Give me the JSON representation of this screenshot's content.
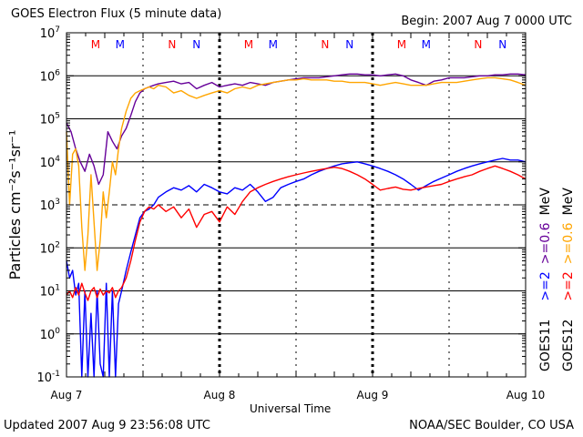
{
  "header": {
    "title": "GOES Electron Flux (5 minute data)",
    "begin": "Begin: 2007 Aug 7 0000 UTC"
  },
  "footer": {
    "updated": "Updated 2007 Aug  9 23:56:08 UTC",
    "source": "NOAA/SEC Boulder, CO USA"
  },
  "colors": {
    "goes11_ge2": "#0000ff",
    "goes11_ge06": "#660099",
    "goes12_ge2": "#ff0000",
    "goes12_ge06": "#ffa500",
    "marker_M": "#ff0000",
    "marker_N": "#0000ff"
  },
  "chart_data": {
    "type": "line",
    "title": "GOES Electron Flux (5 minute data)",
    "xlabel": "Universal Time",
    "ylabel": "Particles cm⁻²s⁻¹sr⁻¹",
    "y_scale": "log",
    "ylim": [
      0.1,
      10000000
    ],
    "y_ticks": [
      {
        "value": 0.1,
        "base": "10",
        "exp": "-1"
      },
      {
        "value": 1,
        "base": "10",
        "exp": "0"
      },
      {
        "value": 10,
        "base": "10",
        "exp": "1"
      },
      {
        "value": 100,
        "base": "10",
        "exp": "2"
      },
      {
        "value": 1000,
        "base": "10",
        "exp": "3"
      },
      {
        "value": 10000,
        "base": "10",
        "exp": "4"
      },
      {
        "value": 100000,
        "base": "10",
        "exp": "5"
      },
      {
        "value": 1000000,
        "base": "10",
        "exp": "6"
      },
      {
        "value": 10000000,
        "base": "10",
        "exp": "7"
      }
    ],
    "x_ticks": [
      {
        "day": 0,
        "label": "Aug 7"
      },
      {
        "day": 1,
        "label": "Aug 8"
      },
      {
        "day": 2,
        "label": "Aug 9"
      },
      {
        "day": 3,
        "label": "Aug 10"
      }
    ],
    "xlim_days": [
      0,
      3
    ],
    "grid": {
      "solid_decades": [
        1,
        10,
        100,
        10000,
        100000,
        1000000
      ],
      "dashed_decades": [
        1000
      ],
      "dashed_days": [
        0.5,
        1,
        1.5,
        2,
        2.5
      ]
    },
    "legend": {
      "position": "right",
      "groups": [
        {
          "satellite": "GOES11",
          "entries": [
            {
              "label": ">=2",
              "color": "#0000ff"
            },
            {
              "label": ">=0.6",
              "color": "#660099"
            },
            {
              "label": "MeV",
              "color": "#000000"
            }
          ]
        },
        {
          "satellite": "GOES12",
          "entries": [
            {
              "label": ">=2",
              "color": "#ff0000"
            },
            {
              "label": ">=0.6",
              "color": "#ffa500"
            },
            {
              "label": "MeV",
              "color": "#000000"
            }
          ]
        }
      ]
    },
    "markers": [
      {
        "day": 0.19,
        "label": "M",
        "color": "#ff0000"
      },
      {
        "day": 0.35,
        "label": "M",
        "color": "#0000ff"
      },
      {
        "day": 0.69,
        "label": "N",
        "color": "#ff0000"
      },
      {
        "day": 0.85,
        "label": "N",
        "color": "#0000ff"
      },
      {
        "day": 1.19,
        "label": "M",
        "color": "#ff0000"
      },
      {
        "day": 1.35,
        "label": "M",
        "color": "#0000ff"
      },
      {
        "day": 1.69,
        "label": "N",
        "color": "#ff0000"
      },
      {
        "day": 1.85,
        "label": "N",
        "color": "#0000ff"
      },
      {
        "day": 2.19,
        "label": "M",
        "color": "#ff0000"
      },
      {
        "day": 2.35,
        "label": "M",
        "color": "#0000ff"
      },
      {
        "day": 2.69,
        "label": "N",
        "color": "#ff0000"
      },
      {
        "day": 2.85,
        "label": "N",
        "color": "#0000ff"
      }
    ],
    "series": [
      {
        "name": "GOES11 >=0.6 MeV",
        "color": "#660099",
        "x": [
          0.0,
          0.03,
          0.06,
          0.09,
          0.12,
          0.15,
          0.18,
          0.21,
          0.24,
          0.27,
          0.3,
          0.33,
          0.36,
          0.39,
          0.42,
          0.45,
          0.48,
          0.51,
          0.54,
          0.57,
          0.6,
          0.65,
          0.7,
          0.75,
          0.8,
          0.85,
          0.9,
          0.95,
          1.0,
          1.05,
          1.1,
          1.15,
          1.2,
          1.25,
          1.3,
          1.35,
          1.4,
          1.45,
          1.5,
          1.55,
          1.6,
          1.65,
          1.7,
          1.75,
          1.8,
          1.85,
          1.9,
          1.95,
          2.0,
          2.05,
          2.1,
          2.15,
          2.2,
          2.25,
          2.3,
          2.35,
          2.4,
          2.45,
          2.5,
          2.55,
          2.6,
          2.65,
          2.7,
          2.75,
          2.8,
          2.85,
          2.9,
          2.95,
          3.0
        ],
        "y": [
          80000,
          50000,
          20000,
          10000,
          6000,
          15000,
          8000,
          3000,
          5000,
          50000,
          30000,
          20000,
          40000,
          60000,
          120000,
          250000,
          400000,
          500000,
          550000,
          600000,
          650000,
          700000,
          750000,
          650000,
          700000,
          500000,
          600000,
          700000,
          550000,
          600000,
          650000,
          600000,
          700000,
          650000,
          600000,
          700000,
          750000,
          800000,
          850000,
          900000,
          900000,
          900000,
          950000,
          1000000,
          1050000,
          1100000,
          1100000,
          1050000,
          1050000,
          1000000,
          1050000,
          1100000,
          1000000,
          800000,
          700000,
          600000,
          750000,
          800000,
          900000,
          900000,
          900000,
          950000,
          1000000,
          1000000,
          1050000,
          1050000,
          1100000,
          1100000,
          1050000
        ]
      },
      {
        "name": "GOES12 >=0.6 MeV",
        "color": "#ffa500",
        "x": [
          0.0,
          0.02,
          0.04,
          0.06,
          0.08,
          0.1,
          0.12,
          0.14,
          0.16,
          0.18,
          0.2,
          0.22,
          0.24,
          0.26,
          0.28,
          0.3,
          0.32,
          0.34,
          0.36,
          0.39,
          0.42,
          0.45,
          0.48,
          0.51,
          0.54,
          0.57,
          0.6,
          0.65,
          0.7,
          0.75,
          0.8,
          0.85,
          0.9,
          0.95,
          1.0,
          1.05,
          1.1,
          1.15,
          1.2,
          1.25,
          1.3,
          1.35,
          1.4,
          1.45,
          1.5,
          1.55,
          1.6,
          1.65,
          1.7,
          1.75,
          1.8,
          1.85,
          1.9,
          1.95,
          2.0,
          2.05,
          2.1,
          2.15,
          2.2,
          2.25,
          2.3,
          2.35,
          2.4,
          2.45,
          2.5,
          2.55,
          2.6,
          2.65,
          2.7,
          2.75,
          2.8,
          2.85,
          2.9,
          2.95,
          3.0
        ],
        "y": [
          50000,
          1000,
          15000,
          20000,
          8000,
          300,
          30,
          200,
          5000,
          400,
          30,
          150,
          2000,
          500,
          2000,
          10000,
          5000,
          20000,
          60000,
          150000,
          300000,
          400000,
          450000,
          500000,
          550000,
          500000,
          600000,
          550000,
          400000,
          450000,
          350000,
          300000,
          350000,
          400000,
          450000,
          400000,
          500000,
          550000,
          500000,
          600000,
          650000,
          700000,
          750000,
          800000,
          800000,
          850000,
          800000,
          800000,
          800000,
          750000,
          750000,
          700000,
          700000,
          700000,
          650000,
          600000,
          650000,
          700000,
          650000,
          600000,
          600000,
          600000,
          650000,
          700000,
          700000,
          700000,
          750000,
          800000,
          850000,
          900000,
          900000,
          850000,
          800000,
          700000,
          600000
        ]
      },
      {
        "name": "GOES11 >=2 MeV",
        "color": "#0000ff",
        "x": [
          0.0,
          0.02,
          0.04,
          0.06,
          0.08,
          0.1,
          0.12,
          0.14,
          0.16,
          0.18,
          0.2,
          0.22,
          0.24,
          0.26,
          0.28,
          0.3,
          0.32,
          0.34,
          0.36,
          0.39,
          0.42,
          0.45,
          0.48,
          0.51,
          0.54,
          0.57,
          0.6,
          0.65,
          0.7,
          0.75,
          0.8,
          0.85,
          0.9,
          0.95,
          1.0,
          1.05,
          1.1,
          1.15,
          1.2,
          1.25,
          1.3,
          1.35,
          1.4,
          1.45,
          1.5,
          1.55,
          1.6,
          1.65,
          1.7,
          1.75,
          1.8,
          1.85,
          1.9,
          1.95,
          2.0,
          2.05,
          2.1,
          2.15,
          2.2,
          2.25,
          2.3,
          2.35,
          2.4,
          2.45,
          2.5,
          2.55,
          2.6,
          2.65,
          2.7,
          2.75,
          2.8,
          2.85,
          2.9,
          2.95,
          3.0
        ],
        "y": [
          50,
          20,
          30,
          8,
          15,
          0.1,
          10,
          0.1,
          3,
          0.1,
          10,
          0.2,
          0.1,
          15,
          0.1,
          10,
          0.1,
          5,
          10,
          30,
          80,
          200,
          500,
          700,
          800,
          1000,
          1500,
          2000,
          2500,
          2200,
          2800,
          2000,
          3000,
          2500,
          2000,
          1800,
          2500,
          2200,
          3000,
          2000,
          1200,
          1500,
          2500,
          3000,
          3500,
          4000,
          5000,
          6000,
          7000,
          8000,
          9000,
          9500,
          10000,
          9000,
          8000,
          7000,
          6000,
          5000,
          4000,
          3000,
          2200,
          2800,
          3500,
          4200,
          5000,
          6000,
          7000,
          8000,
          9000,
          10000,
          11000,
          12000,
          11000,
          11000,
          10000
        ]
      },
      {
        "name": "GOES12 >=2 MeV",
        "color": "#ff0000",
        "x": [
          0.0,
          0.02,
          0.04,
          0.06,
          0.08,
          0.1,
          0.12,
          0.14,
          0.16,
          0.18,
          0.2,
          0.22,
          0.24,
          0.26,
          0.28,
          0.3,
          0.32,
          0.34,
          0.36,
          0.39,
          0.42,
          0.45,
          0.48,
          0.51,
          0.54,
          0.57,
          0.6,
          0.65,
          0.7,
          0.75,
          0.8,
          0.85,
          0.9,
          0.95,
          1.0,
          1.05,
          1.1,
          1.15,
          1.2,
          1.25,
          1.3,
          1.35,
          1.4,
          1.45,
          1.5,
          1.55,
          1.6,
          1.65,
          1.7,
          1.75,
          1.8,
          1.85,
          1.9,
          1.95,
          2.0,
          2.05,
          2.1,
          2.15,
          2.2,
          2.25,
          2.3,
          2.35,
          2.4,
          2.45,
          2.5,
          2.55,
          2.6,
          2.65,
          2.7,
          2.75,
          2.8,
          2.85,
          2.9,
          2.95,
          3.0
        ],
        "y": [
          8,
          10,
          7,
          12,
          8,
          15,
          9,
          6,
          10,
          12,
          7,
          11,
          8,
          10,
          9,
          12,
          7,
          10,
          12,
          20,
          50,
          150,
          400,
          700,
          900,
          800,
          1000,
          700,
          900,
          500,
          800,
          300,
          600,
          700,
          400,
          900,
          600,
          1200,
          2000,
          2500,
          3000,
          3500,
          4000,
          4500,
          5000,
          5500,
          6000,
          6500,
          7000,
          7500,
          7000,
          6000,
          5000,
          4000,
          3000,
          2200,
          2400,
          2600,
          2300,
          2200,
          2400,
          2600,
          2800,
          3000,
          3500,
          4000,
          4500,
          5000,
          6000,
          7000,
          8000,
          7000,
          6000,
          5000,
          4000
        ]
      }
    ]
  }
}
